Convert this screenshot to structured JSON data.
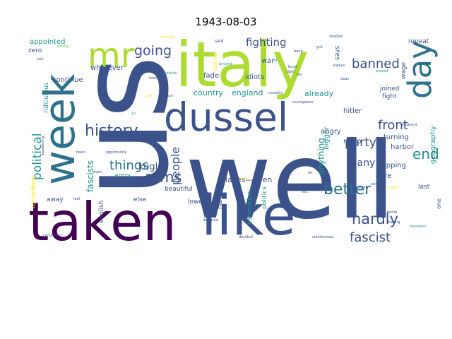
{
  "title": "1943-08-03",
  "palette": {
    "dark_purple": "#440154",
    "indigo": "#472d7b",
    "slate_blue": "#3b528b",
    "steel_blue": "#2c728e",
    "teal": "#21918c",
    "green_teal": "#28ae80",
    "green": "#5ec962",
    "lime": "#addc30",
    "yellow": "#fde725"
  },
  "words": [
    {
      "text": "well",
      "color": "slate_blue",
      "weight": 100
    },
    {
      "text": "us",
      "color": "slate_blue",
      "weight": 95
    },
    {
      "text": "italy",
      "color": "lime",
      "weight": 80
    },
    {
      "text": "taken",
      "color": "dark_purple",
      "weight": 75
    },
    {
      "text": "like",
      "color": "slate_blue",
      "weight": 72
    },
    {
      "text": "dussel",
      "color": "slate_blue",
      "weight": 60
    },
    {
      "text": "week",
      "color": "steel_blue",
      "weight": 55
    },
    {
      "text": "day",
      "color": "steel_blue",
      "weight": 50
    },
    {
      "text": "mr",
      "color": "lime",
      "weight": 45
    },
    {
      "text": "history",
      "color": "slate_blue",
      "weight": 30
    },
    {
      "text": "better",
      "color": "steel_blue",
      "weight": 28
    },
    {
      "text": "hardly",
      "color": "slate_blue",
      "weight": 26
    },
    {
      "text": "end",
      "color": "teal",
      "weight": 26
    },
    {
      "text": "arms",
      "color": "slate_blue",
      "weight": 24
    },
    {
      "text": "going",
      "color": "slate_blue",
      "weight": 22
    },
    {
      "text": "banned",
      "color": "slate_blue",
      "weight": 22
    },
    {
      "text": "fascist",
      "color": "slate_blue",
      "weight": 20
    },
    {
      "text": "things",
      "color": "steel_blue",
      "weight": 20
    },
    {
      "text": "front",
      "color": "slate_blue",
      "weight": 19
    },
    {
      "text": "party",
      "color": "slate_blue",
      "weight": 18
    },
    {
      "text": "political",
      "color": "teal",
      "weight": 17
    },
    {
      "text": "people",
      "color": "slate_blue",
      "weight": 16
    },
    {
      "text": "fighting",
      "color": "slate_blue",
      "weight": 15
    },
    {
      "text": "many",
      "color": "slate_blue",
      "weight": 14
    },
    {
      "text": "kugler",
      "color": "slate_blue",
      "weight": 13
    },
    {
      "text": "fascists",
      "color": "teal",
      "weight": 12
    },
    {
      "text": "anything",
      "color": "teal",
      "weight": 11
    },
    {
      "text": "places—even",
      "color": "slate_blue",
      "weight": 11
    },
    {
      "text": "country",
      "color": "teal",
      "weight": 11
    },
    {
      "text": "england",
      "color": "teal",
      "weight": 11
    },
    {
      "text": "already",
      "color": "teal",
      "weight": 11
    },
    {
      "text": "geography",
      "color": "teal",
      "weight": 10
    },
    {
      "text": "appointed",
      "color": "teal",
      "weight": 10
    },
    {
      "text": "whatever",
      "color": "slate_blue",
      "weight": 10
    },
    {
      "text": "continue",
      "color": "slate_blue",
      "weight": 10
    },
    {
      "text": "fade",
      "color": "slate_blue",
      "weight": 10
    },
    {
      "text": "idiots",
      "color": "slate_blue",
      "weight": 10
    },
    {
      "text": "war",
      "color": "slate_blue",
      "weight": 10
    },
    {
      "text": "hitler",
      "color": "slate_blue",
      "weight": 10
    },
    {
      "text": "radio",
      "color": "slate_blue",
      "weight": 10
    },
    {
      "text": "bigger",
      "color": "teal",
      "weight": 10
    },
    {
      "text": "angry",
      "color": "slate_blue",
      "weight": 10
    },
    {
      "text": "turning",
      "color": "slate_blue",
      "weight": 10
    },
    {
      "text": "harbor",
      "color": "slate_blue",
      "weight": 10
    },
    {
      "text": "slipping",
      "color": "slate_blue",
      "weight": 10
    },
    {
      "text": "dare",
      "color": "slate_blue",
      "weight": 10
    },
    {
      "text": "last",
      "color": "slate_blue",
      "weight": 9
    },
    {
      "text": "repeat",
      "color": "slate_blue",
      "weight": 9
    },
    {
      "text": "says",
      "color": "slate_blue",
      "weight": 9
    },
    {
      "text": "wage",
      "color": "slate_blue",
      "weight": 9
    },
    {
      "text": "joined",
      "color": "slate_blue",
      "weight": 9
    },
    {
      "text": "fight",
      "color": "slate_blue",
      "weight": 9
    },
    {
      "text": "zero",
      "color": "slate_blue",
      "weight": 9
    },
    {
      "text": "ridiculous",
      "color": "teal",
      "weight": 9
    },
    {
      "text": "rotterdam",
      "color": "yellow",
      "weight": 9
    },
    {
      "text": "army",
      "color": "teal",
      "weight": 9
    },
    {
      "text": "else",
      "color": "slate_blue",
      "weight": 9
    },
    {
      "text": "beautiful",
      "color": "slate_blue",
      "weight": 9
    },
    {
      "text": "lower",
      "color": "slate_blue",
      "weight": 9
    },
    {
      "text": "hamburg",
      "color": "slate_blue",
      "weight": 9
    },
    {
      "text": "politics",
      "color": "teal",
      "weight": 9
    },
    {
      "text": "estimation",
      "color": "teal",
      "weight": 9
    },
    {
      "text": "away",
      "color": "slate_blue",
      "weight": 9
    },
    {
      "text": "english",
      "color": "slate_blue",
      "weight": 9
    },
    {
      "text": "taking",
      "color": "yellow",
      "weight": 8
    },
    {
      "text": "one",
      "color": "slate_blue",
      "weight": 8
    },
    {
      "text": "said",
      "color": "slate_blue",
      "weight": 6
    },
    {
      "text": "morning",
      "color": "yellow",
      "weight": 5
    },
    {
      "text": "among",
      "color": "green",
      "weight": 5
    },
    {
      "text": "mrs.",
      "color": "slate_blue",
      "weight": 5
    },
    {
      "text": "teeth",
      "color": "slate_blue",
      "weight": 5
    },
    {
      "text": "practice",
      "color": "teal",
      "weight": 5
    },
    {
      "text": "beyond",
      "color": "teal",
      "weight": 5
    },
    {
      "text": "cat",
      "color": "teal",
      "weight": 5
    },
    {
      "text": "shadow",
      "color": "slate_blue",
      "weight": 5
    },
    {
      "text": "bang",
      "color": "slate_blue",
      "weight": 5
    },
    {
      "text": "grit",
      "color": "slate_blue",
      "weight": 5
    },
    {
      "text": "always",
      "color": "slate_blue",
      "weight": 5
    },
    {
      "text": "burst",
      "color": "slate_blue",
      "weight": 5
    },
    {
      "text": "sight",
      "color": "slate_blue",
      "weight": 5
    },
    {
      "text": "etc",
      "color": "slate_blue",
      "weight": 5
    },
    {
      "text": "daan",
      "color": "slate_blue",
      "weight": 5
    },
    {
      "text": "proved",
      "color": "teal",
      "weight": 5
    },
    {
      "text": "truce",
      "color": "slate_blue",
      "weight": 5
    },
    {
      "text": "recently",
      "color": "slate_blue",
      "weight": 5
    },
    {
      "text": "courageous",
      "color": "slate_blue",
      "weight": 5
    },
    {
      "text": "husband",
      "color": "slate_blue",
      "weight": 5
    },
    {
      "text": "air",
      "color": "green_teal",
      "weight": 5
    },
    {
      "text": "god",
      "color": "yellow",
      "weight": 5
    },
    {
      "text": "opportunity",
      "color": "slate_blue",
      "weight": 5
    },
    {
      "text": "tears",
      "color": "slate_blue",
      "weight": 5
    },
    {
      "text": "squabbling",
      "color": "slate_blue",
      "weight": 5
    },
    {
      "text": "even",
      "color": "slate_blue",
      "weight": 5
    },
    {
      "text": "third",
      "color": "yellow",
      "weight": 5
    },
    {
      "text": "cowardly",
      "color": "slate_blue",
      "weight": 5
    },
    {
      "text": "fall",
      "color": "slate_blue",
      "weight": 5
    },
    {
      "text": "raid",
      "color": "slate_blue",
      "weight": 5
    },
    {
      "text": "nearly",
      "color": "yellow",
      "weight": 5
    },
    {
      "text": "etc.",
      "color": "slate_blue",
      "weight": 5
    },
    {
      "text": "leaf",
      "color": "slate_blue",
      "weight": 5
    },
    {
      "text": "declared",
      "color": "slate_blue",
      "weight": 5
    },
    {
      "text": "bomb",
      "color": "slate_blue",
      "weight": 5
    },
    {
      "text": "shaking",
      "color": "slate_blue",
      "weight": 5
    },
    {
      "text": "mussolini",
      "color": "teal",
      "weight": 5
    },
    {
      "text": "decided",
      "color": "slate_blue",
      "weight": 5
    },
    {
      "text": "smithereens",
      "color": "slate_blue",
      "weight": 5
    },
    {
      "text": "comforted",
      "color": "slate_blue",
      "weight": 5
    },
    {
      "text": "let",
      "color": "slate_blue",
      "weight": 5
    }
  ]
}
